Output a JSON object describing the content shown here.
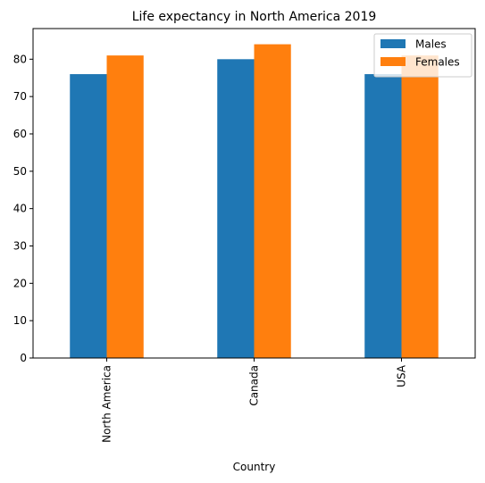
{
  "chart_data": {
    "type": "bar",
    "title": "Life expectancy in North America 2019",
    "xlabel": "Country",
    "ylabel": "",
    "categories": [
      "North America",
      "Canada",
      "USA"
    ],
    "series": [
      {
        "name": "Males",
        "values": [
          76,
          80,
          76
        ],
        "color": "#1f77b4"
      },
      {
        "name": "Females",
        "values": [
          81,
          84,
          81
        ],
        "color": "#ff7f0e"
      }
    ],
    "ylim": [
      0,
      88.2
    ],
    "yticks": [
      0,
      10,
      20,
      30,
      40,
      50,
      60,
      70,
      80
    ],
    "grid": false,
    "legend_position": "top-right",
    "x_tick_rotation": "vertical"
  }
}
